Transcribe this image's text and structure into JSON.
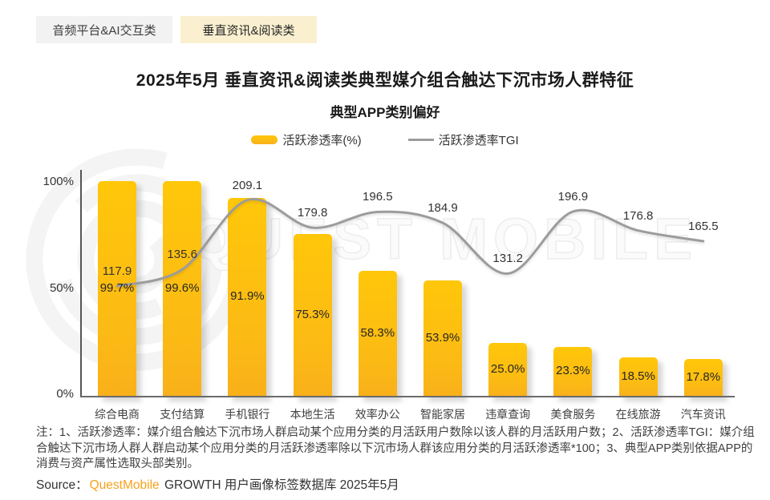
{
  "tabs": [
    {
      "label": "音频平台&AI交互类",
      "active": false
    },
    {
      "label": "垂直资讯&阅读类",
      "active": true
    }
  ],
  "header": {
    "title": "2025年5月 垂直资讯&阅读类典型媒介组合触达下沉市场人群特征",
    "subtitle": "典型APP类别偏好"
  },
  "legend": {
    "bar_label": "活跃渗透率(%)",
    "line_label": "活跃渗透率TGI"
  },
  "colors": {
    "bar_top": "#FFC70A",
    "bar_mid": "#FCBA14",
    "bar_bottom": "#F9B01B",
    "line": "#9C9C9C",
    "accent_orange": "#F9A11B",
    "tab_active_bg": "#FAF0D0",
    "tab_inactive_bg": "#F2F2F2"
  },
  "watermark": {
    "text": "QUEST MOBILE"
  },
  "chart_data": {
    "type": "bar",
    "title": "典型APP类别偏好",
    "categories": [
      "综合电商",
      "支付结算",
      "手机银行",
      "本地生活",
      "效率办公",
      "智能家居",
      "违章查询",
      "美食服务",
      "在线旅游",
      "汽车资讯"
    ],
    "series": [
      {
        "name": "活跃渗透率(%)",
        "type": "bar",
        "values": [
          99.7,
          99.6,
          91.9,
          75.3,
          58.3,
          53.9,
          25.0,
          23.3,
          18.5,
          17.8
        ]
      },
      {
        "name": "活跃渗透率TGI",
        "type": "line",
        "values": [
          117.9,
          135.6,
          209.1,
          179.8,
          196.5,
          184.9,
          131.2,
          196.9,
          176.8,
          165.5
        ]
      }
    ],
    "xlabel": "",
    "ylabel": "",
    "y_ticks": [
      "100%",
      "50%",
      "0%"
    ],
    "ylim": [
      0,
      100
    ],
    "y2lim": [
      0,
      230
    ],
    "grid": false,
    "legend_position": "top"
  },
  "notes": {
    "text": "注：1、活跃渗透率：媒介组合触达下沉市场人群启动某个应用分类的月活跃用户数除以该人群的月活跃用户数；2、活跃渗透率TGI：媒介组合触达下沉市场人群人群启动某个应用分类的月活跃渗透率除以下沉市场人群该应用分类的月活跃渗透率*100；3、典型APP类别依据APP的消费与资产属性选取头部类别。"
  },
  "source": {
    "label": "Source：",
    "brand": "QuestMobile",
    "rest": " GROWTH 用户画像标签数据库 2025年5月"
  }
}
